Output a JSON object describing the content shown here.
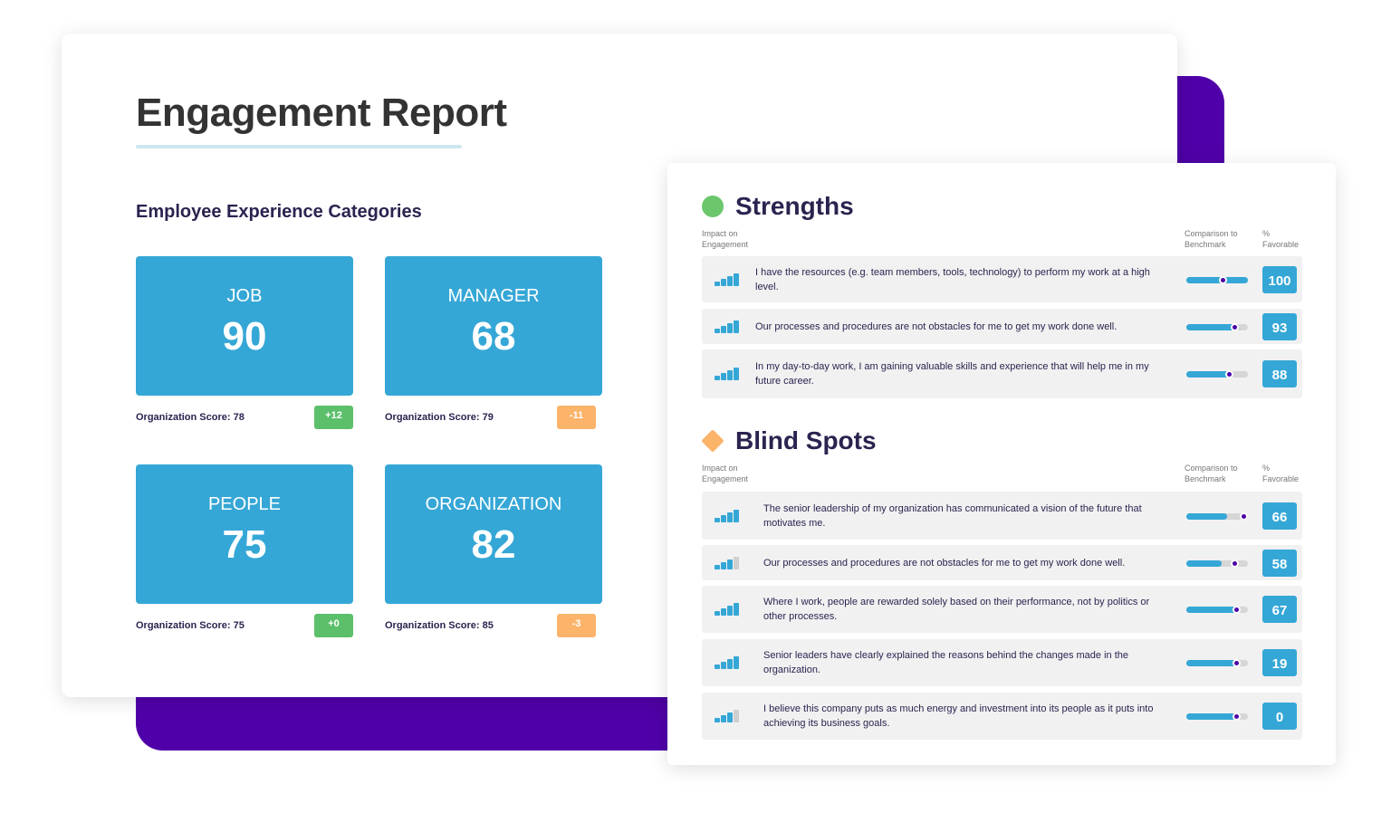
{
  "report": {
    "title": "Engagement Report",
    "subtitle": "Employee Experience Categories",
    "tiles": [
      {
        "label": "JOB",
        "value": 90,
        "score": "Organization Score: 78",
        "delta": "+12",
        "trend": "up"
      },
      {
        "label": "MANAGER",
        "value": 68,
        "score": "Organization Score: 79",
        "delta": "-11",
        "trend": "down"
      },
      {
        "label": "PEOPLE",
        "value": 75,
        "score": "Organization Score: 75",
        "delta": "+0",
        "trend": "up"
      },
      {
        "label": "ORGANIZATION",
        "value": 82,
        "score": "Organization Score: 85",
        "delta": "-3",
        "trend": "down"
      }
    ]
  },
  "sections": [
    {
      "title": "Strengths",
      "color": "#6cc76c",
      "shape": "circle",
      "headers": [
        "Impact on Engagement",
        "Comparison to Benchmark",
        "% Favorable"
      ],
      "rows": [
        {
          "text": "I have the resources (e.g. team members, tools, technology) to perform my work at a high level.",
          "impact": 4,
          "benchmark_fill": 100,
          "benchmark_marker": 59,
          "favorable": 100
        },
        {
          "text": "Our processes and procedures are not obstacles for me to get my work done well.",
          "impact": 4,
          "benchmark_fill": 85,
          "benchmark_marker": 78,
          "favorable": 93
        },
        {
          "text": "In my day-to-day work, I am gaining valuable skills and experience that will help me in my future career.",
          "impact": 4,
          "benchmark_fill": 76,
          "benchmark_marker": 70,
          "favorable": 88
        }
      ]
    },
    {
      "title": "Blind Spots",
      "color": "#fbb46a",
      "shape": "diamond",
      "headers": [
        "Impact on Engagement",
        "Comparison to Benchmark",
        "% Favorable"
      ],
      "rows": [
        {
          "text": "The senior leadership of my organization has communicated a vision of the future that motivates me.",
          "impact": 4,
          "benchmark_fill": 66,
          "benchmark_marker": 93,
          "favorable": 66
        },
        {
          "text": "Our processes and procedures are not obstacles for me to get my work done well.",
          "impact": 3,
          "benchmark_fill": 58,
          "benchmark_marker": 78,
          "favorable": 58
        },
        {
          "text": "Where I work, people are rewarded solely based on their performance, not by politics or other processes.",
          "impact": 4,
          "benchmark_fill": 82,
          "benchmark_marker": 82,
          "favorable": 67
        },
        {
          "text": "Senior leaders have clearly explained the reasons behind the changes made in the organization.",
          "impact": 4,
          "benchmark_fill": 82,
          "benchmark_marker": 82,
          "favorable": 19
        },
        {
          "text": "I believe this company puts as much energy and investment into its people as it puts into achieving its business goals.",
          "impact": 3,
          "benchmark_fill": 82,
          "benchmark_marker": 82,
          "favorable": 0
        }
      ]
    }
  ]
}
